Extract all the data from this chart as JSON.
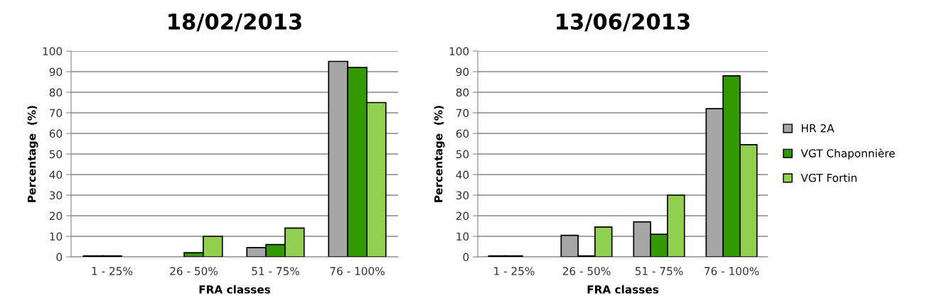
{
  "chart_data": [
    {
      "type": "bar",
      "title": "18/02/2013",
      "xlabel": "FRA classes",
      "ylabel": "Percentage  (%)",
      "categories": [
        "1 - 25%",
        "26 - 50%",
        "51 - 75%",
        "76 - 100%"
      ],
      "ylim": [
        0,
        100
      ],
      "yticks": [
        0,
        10,
        20,
        30,
        40,
        50,
        60,
        70,
        80,
        90,
        100
      ],
      "grid": "y",
      "series": [
        {
          "color": "#a6a6a6",
          "values": [
            0.5,
            null,
            4.5,
            95
          ]
        },
        {
          "color": "#339900",
          "values": [
            0.5,
            2,
            6,
            92
          ]
        },
        {
          "color": "#92d050",
          "values": [
            null,
            10,
            14,
            75
          ]
        }
      ]
    },
    {
      "type": "bar",
      "title": "13/06/2013",
      "xlabel": "FRA classes",
      "ylabel": "Percentage  (%)",
      "categories": [
        "1 - 25%",
        "26 - 50%",
        "51 - 75%",
        "76 - 100%"
      ],
      "ylim": [
        0,
        100
      ],
      "yticks": [
        0,
        10,
        20,
        30,
        40,
        50,
        60,
        70,
        80,
        90,
        100
      ],
      "grid": "y",
      "legend": "right",
      "series": [
        {
          "name": "HR 2A",
          "color": "#a6a6a6",
          "values": [
            0.5,
            10.5,
            17,
            72
          ]
        },
        {
          "name": "VGT Chaponnière",
          "color": "#339900",
          "values": [
            0.5,
            0.5,
            11,
            88
          ]
        },
        {
          "name": "VGT Fortin",
          "color": "#92d050",
          "values": [
            null,
            14.5,
            30,
            54.5
          ]
        }
      ]
    }
  ]
}
